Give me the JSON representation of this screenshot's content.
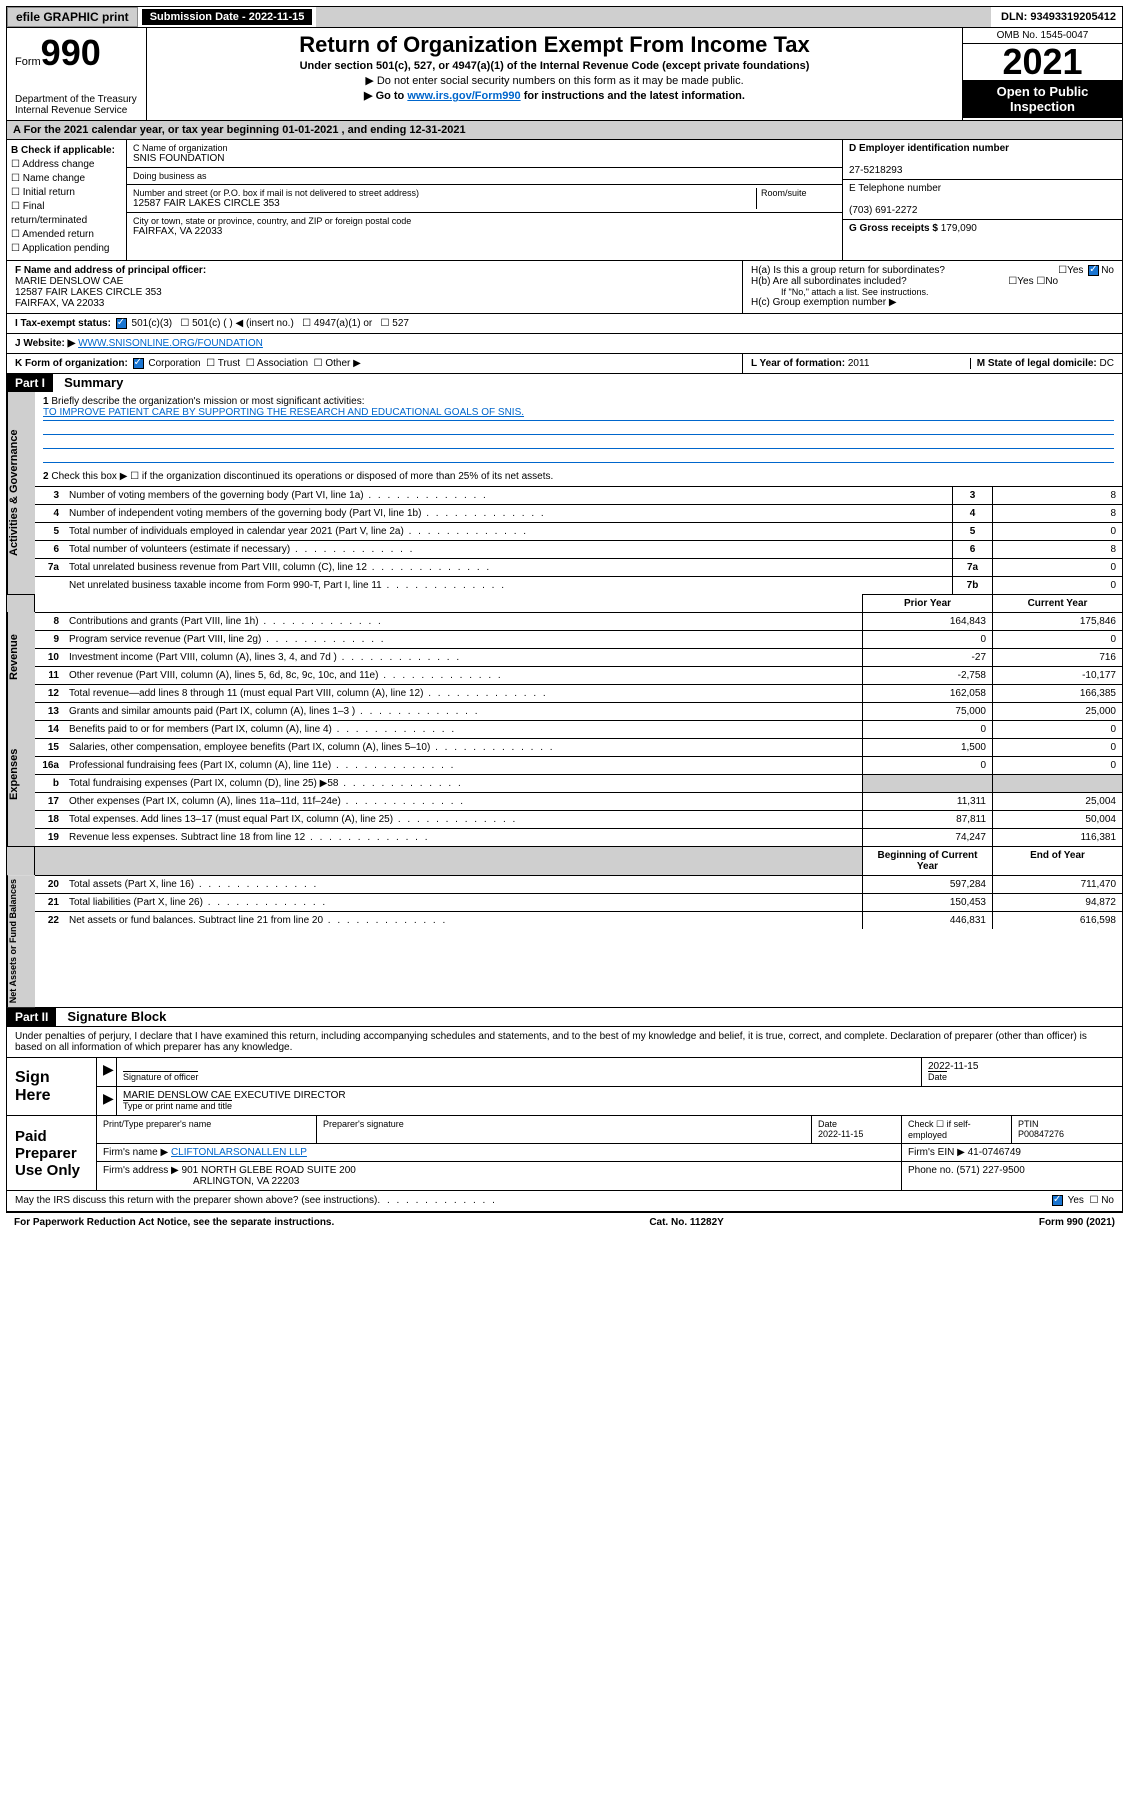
{
  "topbar": {
    "efile": "efile GRAPHIC print",
    "sub_label": "Submission Date - 2022-11-15",
    "dln": "DLN: 93493319205412"
  },
  "header": {
    "form_prefix": "Form",
    "form_num": "990",
    "title": "Return of Organization Exempt From Income Tax",
    "subtitle": "Under section 501(c), 527, or 4947(a)(1) of the Internal Revenue Code (except private foundations)",
    "note1": "▶ Do not enter social security numbers on this form as it may be made public.",
    "note2_pre": "▶ Go to ",
    "note2_link": "www.irs.gov/Form990",
    "note2_post": " for instructions and the latest information.",
    "omb": "OMB No. 1545-0047",
    "year": "2021",
    "inspect": "Open to Public Inspection",
    "dept": "Department of the Treasury\nInternal Revenue Service"
  },
  "period": "For the 2021 calendar year, or tax year beginning 01-01-2021   , and ending 12-31-2021",
  "section_b": {
    "label": "B Check if applicable:",
    "items": [
      "Address change",
      "Name change",
      "Initial return",
      "Final return/terminated",
      "Amended return",
      "Application pending"
    ]
  },
  "section_c": {
    "name_label": "C Name of organization",
    "name": "SNIS FOUNDATION",
    "dba_label": "Doing business as",
    "dba": "",
    "addr_label": "Number and street (or P.O. box if mail is not delivered to street address)",
    "room_label": "Room/suite",
    "addr": "12587 FAIR LAKES CIRCLE 353",
    "city_label": "City or town, state or province, country, and ZIP or foreign postal code",
    "city": "FAIRFAX, VA  22033"
  },
  "section_d": {
    "ein_label": "D Employer identification number",
    "ein": "27-5218293",
    "phone_label": "E Telephone number",
    "phone": "(703) 691-2272",
    "gross_label": "G Gross receipts $",
    "gross": "179,090"
  },
  "section_f": {
    "label": "F  Name and address of principal officer:",
    "name": "MARIE DENSLOW CAE",
    "addr1": "12587 FAIR LAKES CIRCLE 353",
    "addr2": "FAIRFAX, VA  22033"
  },
  "section_h": {
    "a": "H(a)  Is this a group return for subordinates?",
    "b": "H(b)  Are all subordinates included?",
    "b_note": "If \"No,\" attach a list. See instructions.",
    "c": "H(c)  Group exemption number ▶",
    "yes": "Yes",
    "no": "No"
  },
  "section_i": {
    "label": "I    Tax-exempt status:",
    "opts": [
      "501(c)(3)",
      "501(c) (  ) ◀ (insert no.)",
      "4947(a)(1) or",
      "527"
    ]
  },
  "section_j": {
    "label": "J    Website: ▶",
    "value": "WWW.SNISONLINE.ORG/FOUNDATION"
  },
  "section_k": {
    "label": "K Form of organization:",
    "opts": [
      "Corporation",
      "Trust",
      "Association",
      "Other ▶"
    ]
  },
  "section_l": {
    "label": "L Year of formation:",
    "value": "2011"
  },
  "section_m": {
    "label": "M State of legal domicile:",
    "value": "DC"
  },
  "part1": {
    "hdr": "Part I",
    "title": "Summary",
    "l1": "Briefly describe the organization's mission or most significant activities:",
    "mission": "TO IMPROVE PATIENT CARE BY SUPPORTING THE RESEARCH AND EDUCATIONAL GOALS OF SNIS.",
    "l2": "Check this box ▶ ☐  if the organization discontinued its operations or disposed of more than 25% of its net assets.",
    "labels": {
      "side_gov": "Activities & Governance",
      "side_rev": "Revenue",
      "side_exp": "Expenses",
      "side_net": "Net Assets or Fund Balances"
    },
    "rows_gov": [
      {
        "n": "3",
        "t": "Number of voting members of the governing body (Part VI, line 1a)",
        "box": "3",
        "v": "8"
      },
      {
        "n": "4",
        "t": "Number of independent voting members of the governing body (Part VI, line 1b)",
        "box": "4",
        "v": "8"
      },
      {
        "n": "5",
        "t": "Total number of individuals employed in calendar year 2021 (Part V, line 2a)",
        "box": "5",
        "v": "0"
      },
      {
        "n": "6",
        "t": "Total number of volunteers (estimate if necessary)",
        "box": "6",
        "v": "8"
      },
      {
        "n": "7a",
        "t": "Total unrelated business revenue from Part VIII, column (C), line 12",
        "box": "7a",
        "v": "0"
      },
      {
        "n": "",
        "t": "Net unrelated business taxable income from Form 990-T, Part I, line 11",
        "box": "7b",
        "v": "0"
      }
    ],
    "col_hdr_prior": "Prior Year",
    "col_hdr_curr": "Current Year",
    "rows_rev": [
      {
        "n": "8",
        "t": "Contributions and grants (Part VIII, line 1h)",
        "p": "164,843",
        "c": "175,846"
      },
      {
        "n": "9",
        "t": "Program service revenue (Part VIII, line 2g)",
        "p": "0",
        "c": "0"
      },
      {
        "n": "10",
        "t": "Investment income (Part VIII, column (A), lines 3, 4, and 7d )",
        "p": "-27",
        "c": "716"
      },
      {
        "n": "11",
        "t": "Other revenue (Part VIII, column (A), lines 5, 6d, 8c, 9c, 10c, and 11e)",
        "p": "-2,758",
        "c": "-10,177"
      },
      {
        "n": "12",
        "t": "Total revenue—add lines 8 through 11 (must equal Part VIII, column (A), line 12)",
        "p": "162,058",
        "c": "166,385"
      }
    ],
    "rows_exp": [
      {
        "n": "13",
        "t": "Grants and similar amounts paid (Part IX, column (A), lines 1–3 )",
        "p": "75,000",
        "c": "25,000"
      },
      {
        "n": "14",
        "t": "Benefits paid to or for members (Part IX, column (A), line 4)",
        "p": "0",
        "c": "0"
      },
      {
        "n": "15",
        "t": "Salaries, other compensation, employee benefits (Part IX, column (A), lines 5–10)",
        "p": "1,500",
        "c": "0"
      },
      {
        "n": "16a",
        "t": "Professional fundraising fees (Part IX, column (A), line 11e)",
        "p": "0",
        "c": "0"
      },
      {
        "n": "b",
        "t": "Total fundraising expenses (Part IX, column (D), line 25) ▶58",
        "p": "",
        "c": "",
        "grey": true
      },
      {
        "n": "17",
        "t": "Other expenses (Part IX, column (A), lines 11a–11d, 11f–24e)",
        "p": "11,311",
        "c": "25,004"
      },
      {
        "n": "18",
        "t": "Total expenses. Add lines 13–17 (must equal Part IX, column (A), line 25)",
        "p": "87,811",
        "c": "50,004"
      },
      {
        "n": "19",
        "t": "Revenue less expenses. Subtract line 18 from line 12",
        "p": "74,247",
        "c": "116,381"
      }
    ],
    "col_hdr_beg": "Beginning of Current Year",
    "col_hdr_end": "End of Year",
    "rows_net": [
      {
        "n": "20",
        "t": "Total assets (Part X, line 16)",
        "p": "597,284",
        "c": "711,470"
      },
      {
        "n": "21",
        "t": "Total liabilities (Part X, line 26)",
        "p": "150,453",
        "c": "94,872"
      },
      {
        "n": "22",
        "t": "Net assets or fund balances. Subtract line 21 from line 20",
        "p": "446,831",
        "c": "616,598"
      }
    ]
  },
  "part2": {
    "hdr": "Part II",
    "title": "Signature Block",
    "decl": "Under penalties of perjury, I declare that I have examined this return, including accompanying schedules and statements, and to the best of my knowledge and belief, it is true, correct, and complete. Declaration of preparer (other than officer) is based on all information of which preparer has any knowledge.",
    "sign_here": "Sign Here",
    "sig_officer": "Signature of officer",
    "sig_date": "2022-11-15",
    "date_lbl": "Date",
    "sig_name": "MARIE DENSLOW CAE  EXECUTIVE DIRECTOR",
    "sig_name_lbl": "Type or print name and title",
    "paid": "Paid Preparer Use Only",
    "prep_name_lbl": "Print/Type preparer's name",
    "prep_sig_lbl": "Preparer's signature",
    "prep_date": "2022-11-15",
    "prep_check": "Check ☐ if self-employed",
    "ptin_lbl": "PTIN",
    "ptin": "P00847276",
    "firm_name_lbl": "Firm's name    ▶",
    "firm_name": "CLIFTONLARSONALLEN LLP",
    "firm_ein_lbl": "Firm's EIN ▶",
    "firm_ein": "41-0746749",
    "firm_addr_lbl": "Firm's address ▶",
    "firm_addr": "901 NORTH GLEBE ROAD SUITE 200",
    "firm_addr2": "ARLINGTON, VA  22203",
    "firm_phone_lbl": "Phone no.",
    "firm_phone": "(571) 227-9500",
    "discuss": "May the IRS discuss this return with the preparer shown above? (see instructions)",
    "yes": "Yes",
    "no": "No"
  },
  "footer": {
    "left": "For Paperwork Reduction Act Notice, see the separate instructions.",
    "mid": "Cat. No. 11282Y",
    "right": "Form 990 (2021)"
  }
}
